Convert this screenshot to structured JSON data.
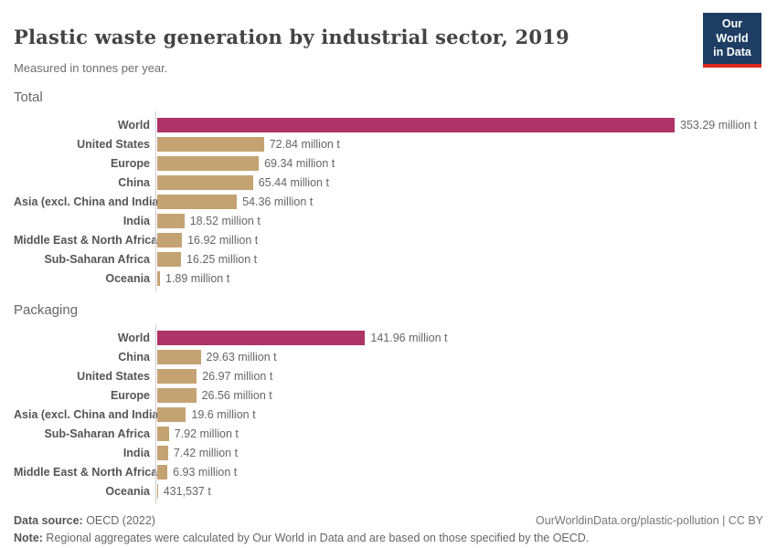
{
  "header": {
    "title": "Plastic waste generation by industrial sector, 2019",
    "subtitle": "Measured in tonnes per year."
  },
  "logo": {
    "line1": "Our World",
    "line2": "in Data"
  },
  "chart_data": [
    {
      "type": "bar",
      "title": "Total",
      "orientation": "horizontal",
      "unit": "million tonnes per year",
      "xlim": [
        0,
        353.29
      ],
      "grid": false,
      "highlight_category": "World",
      "categories": [
        "World",
        "United States",
        "Europe",
        "China",
        "Asia (excl. China and India)",
        "India",
        "Middle East & North Africa",
        "Sub-Saharan Africa",
        "Oceania"
      ],
      "values": [
        353.29,
        72.84,
        69.34,
        65.44,
        54.36,
        18.52,
        16.92,
        16.25,
        1.89
      ],
      "value_labels": [
        "353.29 million t",
        "72.84 million t",
        "69.34 million t",
        "65.44 million t",
        "54.36 million t",
        "18.52 million t",
        "16.92 million t",
        "16.25 million t",
        "1.89 million t"
      ]
    },
    {
      "type": "bar",
      "title": "Packaging",
      "orientation": "horizontal",
      "unit": "million tonnes per year",
      "xlim": [
        0,
        353.29
      ],
      "grid": false,
      "highlight_category": "World",
      "categories": [
        "World",
        "China",
        "United States",
        "Europe",
        "Asia (excl. China and India)",
        "Sub-Saharan Africa",
        "India",
        "Middle East & North Africa",
        "Oceania"
      ],
      "values": [
        141.96,
        29.63,
        26.97,
        26.56,
        19.6,
        7.92,
        7.42,
        6.93,
        0.431537
      ],
      "value_labels": [
        "141.96 million t",
        "29.63 million t",
        "26.97 million t",
        "26.56 million t",
        "19.6 million t",
        "7.92 million t",
        "7.42 million t",
        "6.93 million t",
        "431,537 t"
      ]
    }
  ],
  "footer": {
    "source_label": "Data source:",
    "source_value": " OECD (2022)",
    "attribution": "OurWorldinData.org/plastic-pollution | CC BY",
    "note_label": "Note:",
    "note_value": " Regional aggregates were calculated by Our World in Data and are based on those specified by the OECD."
  },
  "colors": {
    "highlight_bar": "#ae3366",
    "default_bar": "#c4a373",
    "axis_line": "#cccccc",
    "logo_background": "#1d3d63",
    "logo_stripe": "#dc2a1e"
  }
}
